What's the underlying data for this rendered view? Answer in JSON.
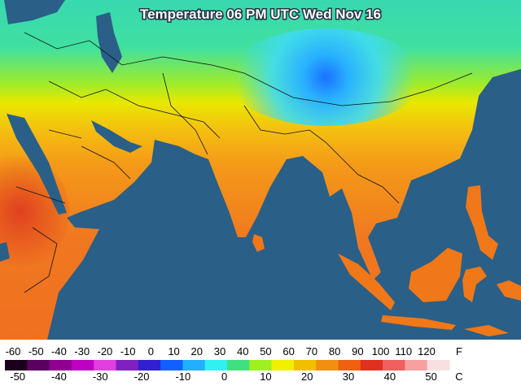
{
  "title": "Temperature 06 PM UTC Wed Nov 16",
  "legend": {
    "fahrenheit": {
      "unit": "F",
      "labels": [
        -60,
        -50,
        -40,
        -30,
        -20,
        -10,
        0,
        10,
        20,
        30,
        40,
        50,
        60,
        70,
        80,
        90,
        100,
        110,
        120
      ]
    },
    "celsius": {
      "unit": "C",
      "labels": [
        -50,
        -40,
        -30,
        -20,
        -10,
        0,
        10,
        20,
        30,
        40,
        50
      ]
    },
    "colors": [
      "#1a001a",
      "#5a0060",
      "#900090",
      "#c000c0",
      "#e040e0",
      "#8020c0",
      "#3020d0",
      "#1060ff",
      "#20b0ff",
      "#30f0f0",
      "#40e080",
      "#a0f020",
      "#f0f000",
      "#f0c000",
      "#f09010",
      "#f06010",
      "#e03020",
      "#f06060",
      "#f8a0a0",
      "#f8e0e0"
    ]
  }
}
